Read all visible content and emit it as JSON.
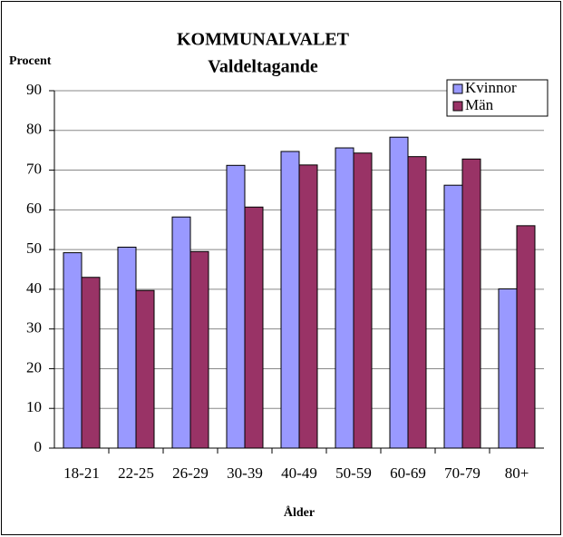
{
  "chart_data": {
    "type": "bar",
    "title": "KOMMUNALVALET",
    "subtitle": "Valdeltagande",
    "y_label": "Procent",
    "x_label": "Ålder",
    "categories": [
      "18-21",
      "22-25",
      "26-29",
      "30-39",
      "40-49",
      "50-59",
      "60-69",
      "70-79",
      "80+"
    ],
    "series": [
      {
        "name": "Kvinnor",
        "color": "#9999ff",
        "values": [
          49.2,
          50.6,
          58.2,
          71.2,
          74.7,
          75.6,
          78.3,
          66.2,
          40.1
        ]
      },
      {
        "name": "Män",
        "color": "#993366",
        "values": [
          43,
          39.7,
          49.5,
          60.7,
          71.3,
          74.3,
          73.4,
          72.8,
          56
        ]
      }
    ],
    "ylim": [
      0,
      90
    ],
    "yticks": [
      0,
      10,
      20,
      30,
      40,
      50,
      60,
      70,
      80,
      90
    ],
    "grid": true,
    "legend": "top-right"
  }
}
